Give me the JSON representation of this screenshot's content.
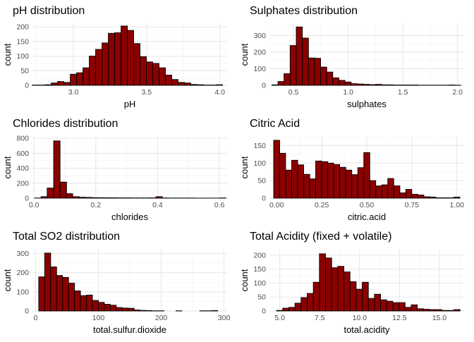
{
  "colors": {
    "bar_fill": "#8b0000",
    "bar_stroke": "#000000",
    "grid": "#e6e6e6"
  },
  "chart_data": [
    {
      "type": "bar",
      "title": "pH distribution",
      "xlabel": "pH",
      "ylabel": "count",
      "bin_width": 0.0433,
      "xlim": [
        2.72,
        4.05
      ],
      "ylim": [
        0,
        210
      ],
      "xticks": [
        3.0,
        3.5,
        4.0
      ],
      "xtick_labels": [
        "3.0",
        "3.5",
        "4.0"
      ],
      "yticks": [
        0,
        50,
        100,
        150,
        200
      ],
      "bin_centers": [
        2.74,
        2.783,
        2.827,
        2.87,
        2.913,
        2.957,
        3.0,
        3.043,
        3.087,
        3.13,
        3.173,
        3.217,
        3.26,
        3.303,
        3.347,
        3.39,
        3.433,
        3.477,
        3.52,
        3.563,
        3.607,
        3.65,
        3.693,
        3.737,
        3.78,
        3.823,
        3.867,
        3.91,
        3.953,
        3.997
      ],
      "values": [
        1,
        1,
        2,
        8,
        13,
        10,
        38,
        43,
        60,
        100,
        123,
        145,
        178,
        180,
        203,
        188,
        143,
        98,
        80,
        75,
        60,
        35,
        20,
        10,
        8,
        3,
        2,
        1,
        1,
        2
      ],
      "grid": true
    },
    {
      "type": "bar",
      "title": "Sulphates distribution",
      "xlabel": "sulphates",
      "ylabel": "count",
      "bin_width": 0.0557,
      "xlim": [
        0.28,
        2.06
      ],
      "ylim": [
        0,
        370
      ],
      "xticks": [
        0.5,
        1.0,
        1.5,
        2.0
      ],
      "xtick_labels": [
        "0.5",
        "1.0",
        "1.5",
        "2.0"
      ],
      "yticks": [
        0,
        100,
        200,
        300
      ],
      "bin_centers": [
        0.33,
        0.386,
        0.441,
        0.497,
        0.553,
        0.609,
        0.664,
        0.72,
        0.776,
        0.831,
        0.887,
        0.943,
        0.999,
        1.054,
        1.11,
        1.166,
        1.221,
        1.277,
        1.333,
        1.389,
        1.444,
        1.5,
        1.556,
        1.611,
        1.667,
        1.723,
        1.779,
        1.834,
        1.89,
        1.946,
        2.001
      ],
      "values": [
        3,
        23,
        70,
        240,
        352,
        285,
        165,
        163,
        110,
        80,
        45,
        30,
        20,
        10,
        8,
        6,
        4,
        6,
        3,
        3,
        2,
        2,
        2,
        2,
        1,
        1,
        1,
        1,
        1,
        2,
        1
      ],
      "grid": true
    },
    {
      "type": "bar",
      "title": "Chlorides distribution",
      "xlabel": "chlorides",
      "ylabel": "count",
      "bin_width": 0.0207,
      "xlim": [
        -0.005,
        0.625
      ],
      "ylim": [
        0,
        820
      ],
      "xticks": [
        0.0,
        0.2,
        0.4,
        0.6
      ],
      "xtick_labels": [
        "0.0",
        "0.2",
        "0.4",
        "0.6"
      ],
      "yticks": [
        0,
        200,
        400,
        600,
        800
      ],
      "bin_centers": [
        0.012,
        0.033,
        0.053,
        0.074,
        0.095,
        0.115,
        0.136,
        0.157,
        0.177,
        0.198,
        0.219,
        0.239,
        0.26,
        0.281,
        0.301,
        0.322,
        0.343,
        0.363,
        0.384,
        0.405,
        0.425,
        0.446,
        0.467,
        0.487,
        0.508,
        0.529,
        0.549,
        0.57,
        0.591,
        0.611
      ],
      "values": [
        2,
        20,
        135,
        765,
        215,
        60,
        20,
        12,
        10,
        7,
        6,
        5,
        5,
        4,
        4,
        3,
        3,
        3,
        4,
        20,
        3,
        2,
        2,
        2,
        2,
        1,
        1,
        1,
        1,
        3
      ],
      "grid": true
    },
    {
      "type": "bar",
      "title": "Citric Acid",
      "xlabel": "citric.acid",
      "ylabel": "count",
      "bin_width": 0.0333,
      "xlim": [
        -0.04,
        1.04
      ],
      "ylim": [
        0,
        175
      ],
      "xticks": [
        0.0,
        0.25,
        0.5,
        0.75,
        1.0
      ],
      "xtick_labels": [
        "0.00",
        "0.25",
        "0.50",
        "0.75",
        "1.00"
      ],
      "yticks": [
        0,
        50,
        100,
        150
      ],
      "bin_centers": [
        0.0,
        0.033,
        0.067,
        0.1,
        0.133,
        0.167,
        0.2,
        0.233,
        0.267,
        0.3,
        0.333,
        0.367,
        0.4,
        0.433,
        0.467,
        0.5,
        0.533,
        0.567,
        0.6,
        0.633,
        0.667,
        0.7,
        0.733,
        0.767,
        0.8,
        0.833,
        0.867,
        0.9,
        0.933,
        0.967,
        1.0
      ],
      "values": [
        165,
        128,
        80,
        108,
        95,
        68,
        55,
        106,
        104,
        100,
        96,
        88,
        80,
        67,
        87,
        130,
        50,
        35,
        38,
        56,
        35,
        15,
        25,
        11,
        9,
        4,
        3,
        1,
        1,
        1,
        3
      ],
      "grid": true
    },
    {
      "type": "bar",
      "title": "Total SO2 distribution",
      "xlabel": "total.sulfur.dioxide",
      "ylabel": "count",
      "bin_width": 9.5,
      "xlim": [
        -5,
        305
      ],
      "ylim": [
        0,
        320
      ],
      "xticks": [
        0,
        100,
        200,
        300
      ],
      "xtick_labels": [
        "0",
        "100",
        "200",
        "300"
      ],
      "yticks": [
        0,
        100,
        200,
        300
      ],
      "bin_centers": [
        9.75,
        19.25,
        28.75,
        38.25,
        47.75,
        57.25,
        66.75,
        76.25,
        85.75,
        95.25,
        104.75,
        114.25,
        123.75,
        133.25,
        142.75,
        152.25,
        161.75,
        171.25,
        180.75,
        190.25,
        199.75,
        209.25,
        218.75,
        228.25,
        237.75,
        247.25,
        256.75,
        266.25,
        275.75,
        285.25
      ],
      "values": [
        178,
        302,
        230,
        185,
        175,
        145,
        105,
        80,
        83,
        55,
        45,
        35,
        30,
        18,
        15,
        14,
        5,
        3,
        2,
        1,
        1,
        0,
        0,
        1,
        0,
        0,
        0,
        1,
        1,
        2
      ],
      "grid": true
    },
    {
      "type": "bar",
      "title": "Total Acidity (fixed + volatile)",
      "xlabel": "total.acidity",
      "ylabel": "count",
      "bin_width": 0.383,
      "xlim": [
        4.35,
        16.55
      ],
      "ylim": [
        0,
        220
      ],
      "xticks": [
        5.0,
        7.5,
        10.0,
        12.5,
        15.0
      ],
      "xtick_labels": [
        "5.0",
        "7.5",
        "10.0",
        "12.5",
        "15.0"
      ],
      "yticks": [
        0,
        50,
        100,
        150,
        200
      ],
      "bin_centers": [
        4.99,
        5.373,
        5.757,
        6.14,
        6.523,
        6.907,
        7.29,
        7.673,
        8.057,
        8.44,
        8.823,
        9.207,
        9.59,
        9.973,
        10.357,
        10.74,
        11.123,
        11.507,
        11.89,
        12.273,
        12.657,
        13.04,
        13.423,
        13.807,
        14.19,
        14.573,
        14.957,
        15.34,
        15.723,
        16.107
      ],
      "values": [
        2,
        10,
        13,
        28,
        48,
        63,
        103,
        205,
        190,
        155,
        160,
        140,
        105,
        78,
        103,
        45,
        60,
        40,
        35,
        30,
        30,
        13,
        22,
        8,
        6,
        5,
        5,
        2,
        2,
        5
      ],
      "grid": true
    }
  ]
}
